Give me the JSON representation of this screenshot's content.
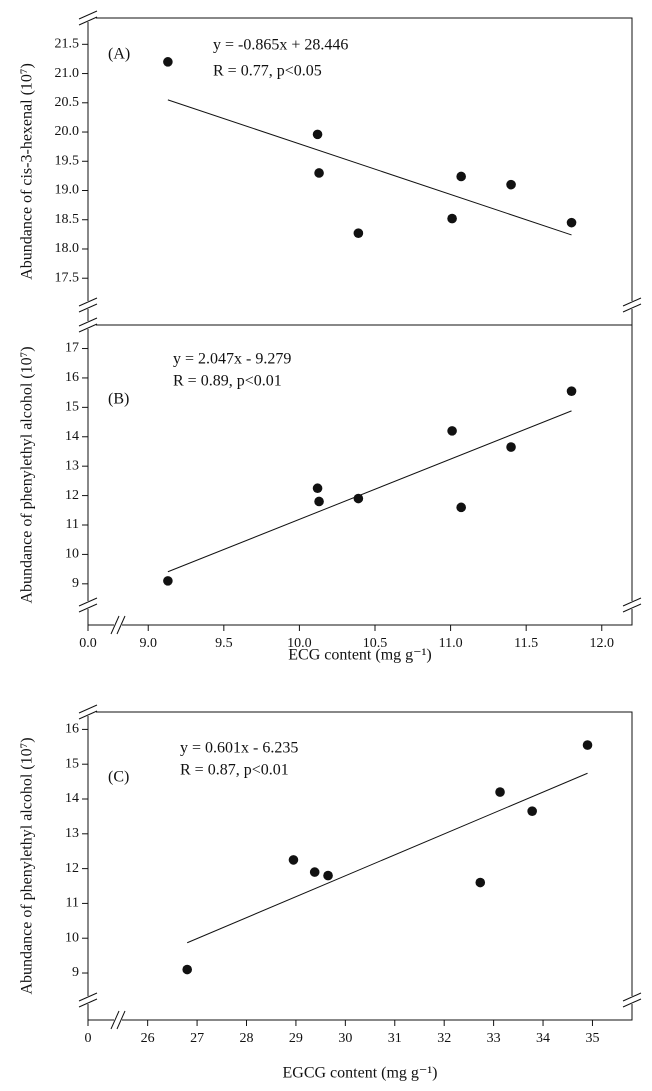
{
  "chart_data": [
    {
      "type": "scatter",
      "panel_label": "(A)",
      "equation": "y = -0.865x + 28.446",
      "stats": "R = 0.77, p<0.05",
      "ylabel": "Abundance of cis-3-hexenal (10⁷)",
      "color": "#111111",
      "x": [
        9.13,
        10.12,
        10.13,
        10.39,
        11.01,
        11.07,
        11.4,
        11.8
      ],
      "values": [
        21.2,
        19.96,
        19.3,
        18.27,
        18.52,
        19.24,
        19.1,
        18.45
      ],
      "trendline": {
        "x": [
          9.13,
          11.8
        ],
        "y": [
          20.55,
          18.24
        ]
      },
      "xlim": [
        0,
        12.2
      ],
      "xbreak": 8.8,
      "ylim": [
        16.7,
        21.95
      ],
      "yticks": [
        17.5,
        {
          "value": 18,
          "label": "18.0"
        },
        18.5,
        {
          "value": 19,
          "label": "19.0"
        },
        19.5,
        {
          "value": 20,
          "label": "20.0"
        },
        20.5,
        {
          "value": 21,
          "label": "21.0"
        },
        21.5
      ]
    },
    {
      "type": "scatter",
      "panel_label": "(B)",
      "equation": "y = 2.047x - 9.279",
      "stats": "R = 0.89, p<0.01",
      "ylabel": "Abundance of phenylethyl alcohol (10⁷)",
      "xlabel": "ECG content (mg g⁻¹)",
      "color": "#111111",
      "x": [
        9.13,
        10.12,
        10.13,
        10.39,
        11.01,
        11.07,
        11.4,
        11.8
      ],
      "values": [
        9.1,
        12.25,
        11.8,
        11.9,
        14.2,
        11.6,
        13.65,
        15.55
      ],
      "trendline": {
        "x": [
          9.13,
          11.8
        ],
        "y": [
          9.41,
          14.88
        ]
      },
      "xlim": [
        0,
        12.2
      ],
      "xbreak": 8.8,
      "xticks": [
        {
          "value": 0,
          "label": "0.0"
        },
        {
          "value": 9,
          "label": "9.0"
        },
        9.5,
        {
          "value": 10,
          "label": "10.0"
        },
        10.5,
        {
          "value": 11,
          "label": "11.0"
        },
        11.5,
        {
          "value": 12,
          "label": "12.0"
        }
      ],
      "ylim": [
        7.6,
        17.8
      ],
      "yticks": [
        9,
        10,
        11,
        12,
        13,
        14,
        15,
        16,
        17
      ]
    },
    {
      "type": "scatter",
      "panel_label": "(C)",
      "equation": "y = 0.601x - 6.235",
      "stats": "R = 0.87, p<0.01",
      "ylabel": "Abundance of phenylethyl alcohol (10⁷)",
      "xlabel": "EGCG content (mg g⁻¹)",
      "color": "#111111",
      "x": [
        26.8,
        28.95,
        29.38,
        29.65,
        32.73,
        33.13,
        33.78,
        34.9
      ],
      "values": [
        9.1,
        12.25,
        11.9,
        11.8,
        11.6,
        14.2,
        13.65,
        15.55
      ],
      "trendline": {
        "x": [
          26.8,
          34.9
        ],
        "y": [
          9.87,
          14.74
        ]
      },
      "xlim": [
        0,
        35.8
      ],
      "xbreak": 25.4,
      "xticks": [
        0,
        26,
        27,
        28,
        29,
        30,
        31,
        32,
        33,
        34,
        35
      ],
      "ylim": [
        7.65,
        16.5
      ],
      "yticks": [
        9,
        10,
        11,
        12,
        13,
        14,
        15,
        16
      ]
    }
  ]
}
